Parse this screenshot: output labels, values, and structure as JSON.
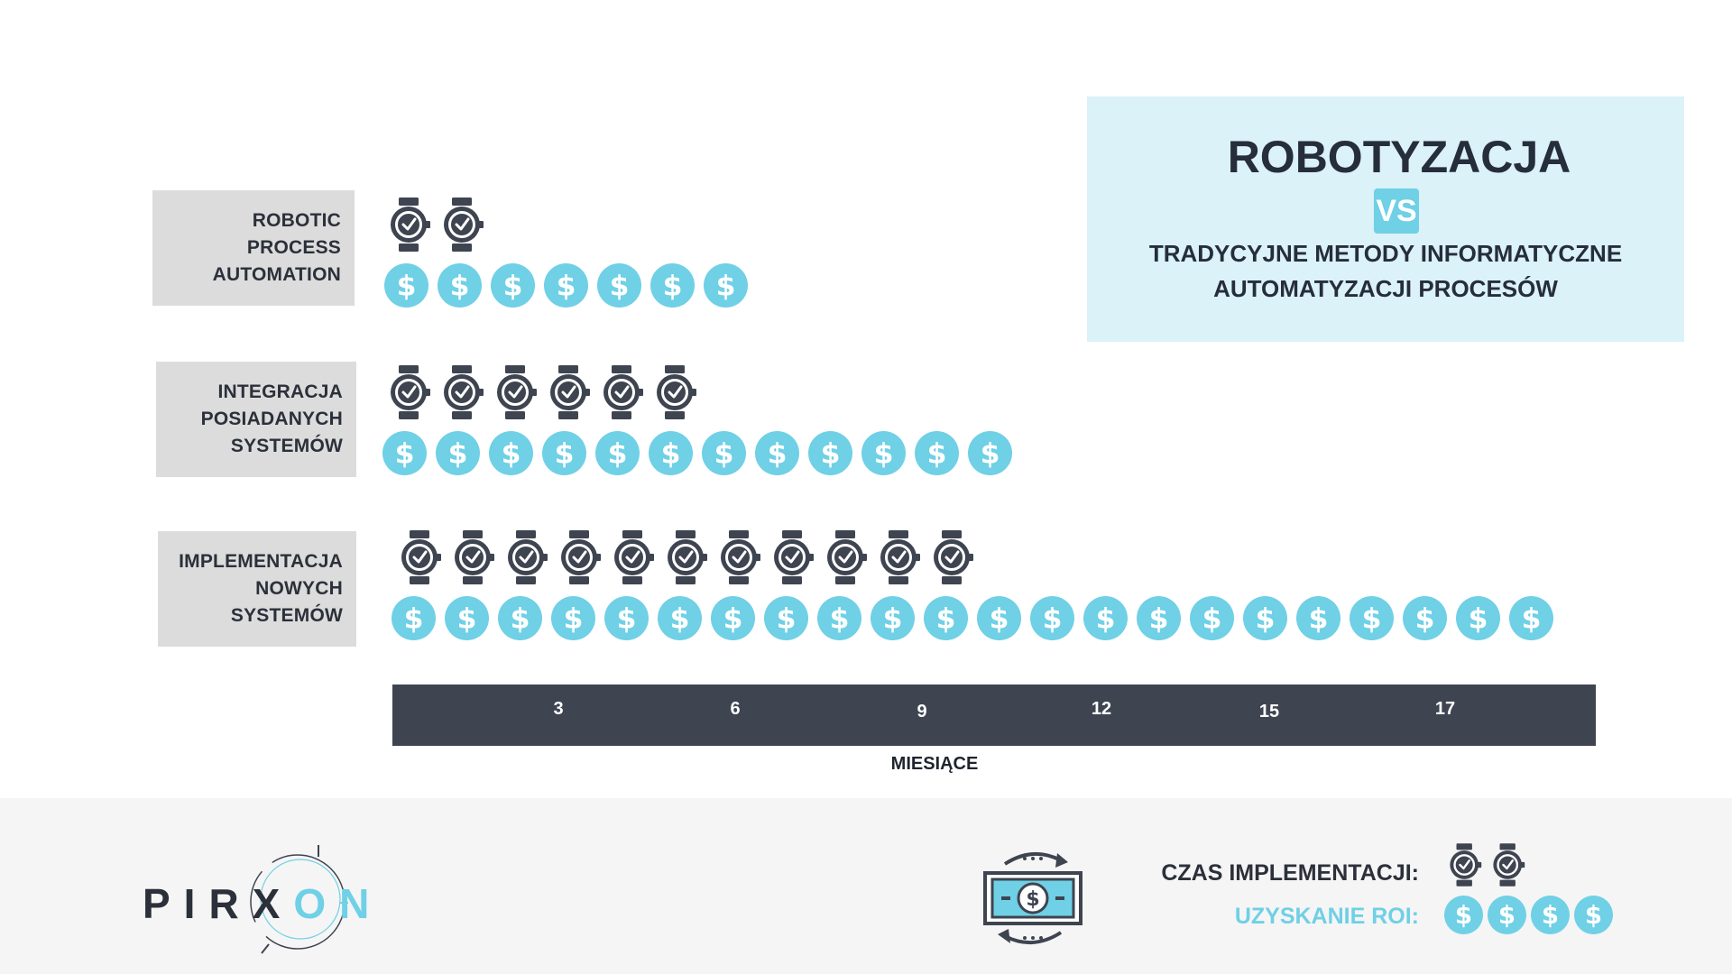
{
  "header": {
    "title": "ROBOTYZACJA",
    "vs": "VS",
    "subtitle_line1": "TRADYCYJNE METODY INFORMATYCZNE",
    "subtitle_line2": "AUTOMATYZACJI PROCESÓW"
  },
  "rows": [
    {
      "label": [
        "ROBOTIC",
        "PROCESS",
        "AUTOMATION"
      ],
      "implementation_time_icons": 2,
      "roi_icons": 7
    },
    {
      "label": [
        "INTEGRACJA",
        "POSIADANYCH",
        "SYSTEMÓW"
      ],
      "implementation_time_icons": 6,
      "roi_icons": 12
    },
    {
      "label": [
        "IMPLEMENTACJA",
        "NOWYCH",
        "SYSTEMÓW"
      ],
      "implementation_time_icons": 11,
      "roi_icons": 22
    }
  ],
  "axis": {
    "ticks": [
      "3",
      "6",
      "9",
      "12",
      "15",
      "17"
    ],
    "label": "MIESIĄCE"
  },
  "legend": {
    "implementation_label": "CZAS IMPLEMENTACJI:",
    "implementation_icons": 2,
    "roi_label": "UZYSKANIE ROI:",
    "roi_icons": 4
  },
  "brand": {
    "name_dark": "PIRX",
    "name_light": "ON"
  },
  "colors": {
    "accent": "#6fd0e6",
    "dark": "#3e4450",
    "label_bg": "#dcdcdc",
    "title_bg": "#daf2f8",
    "footer_bg": "#f5f5f5"
  },
  "icons": {
    "time": "watch-icon",
    "roi": "dollar-coin-icon",
    "money_cycle": "money-cycle-icon"
  }
}
